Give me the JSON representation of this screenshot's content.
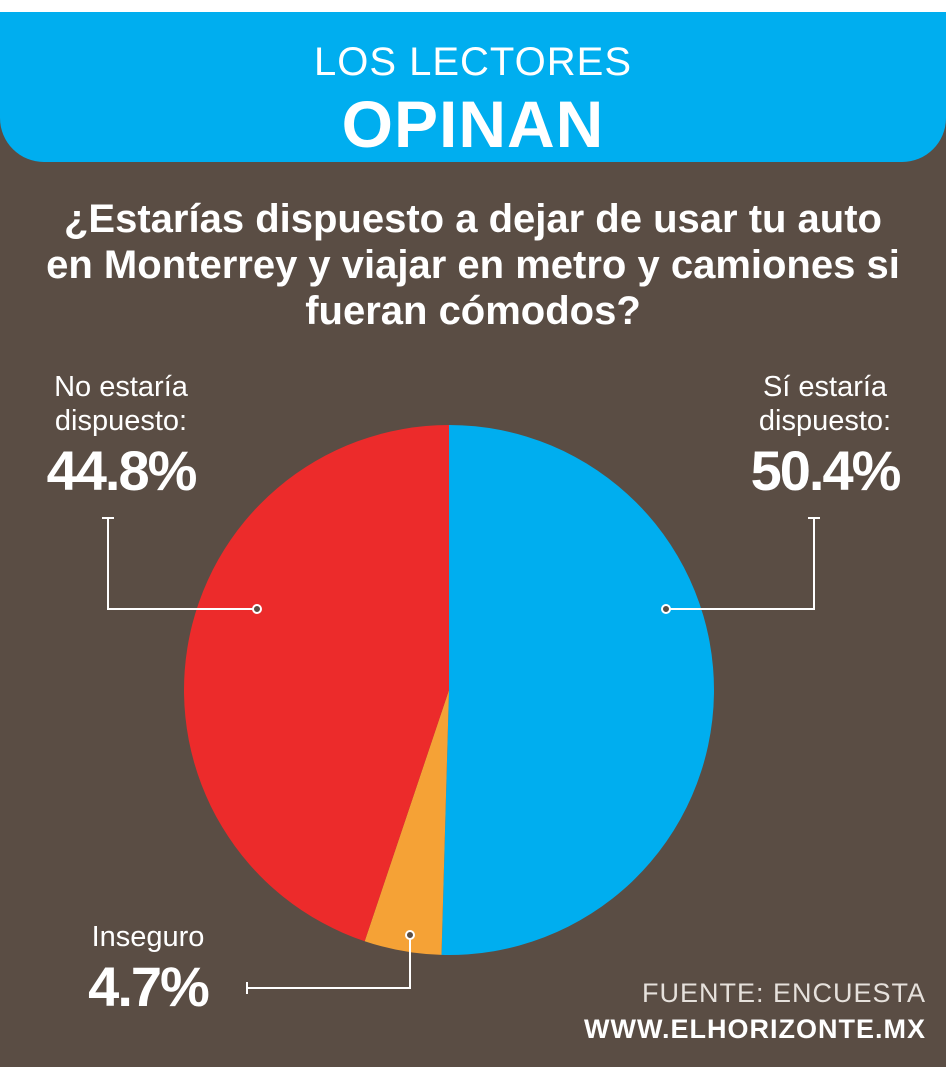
{
  "header": {
    "line1": "LOS LECTORES",
    "line2": "OPINAN"
  },
  "question": "¿Estarías dispuesto a dejar de usar tu auto en Monterrey y viajar en metro y camiones si fueran cómodos?",
  "chart_data": {
    "type": "pie",
    "title": "¿Estarías dispuesto a dejar de usar tu auto en Monterrey y viajar en metro y camiones si fueran cómodos?",
    "slices": [
      {
        "label": "Sí estaría dispuesto:",
        "label_line1": "Sí estaría",
        "label_line2": "dispuesto:",
        "value": 50.4,
        "display": "50.4%",
        "color": "#00aeef"
      },
      {
        "label": "Inseguro",
        "label_line1": "Inseguro",
        "value": 4.7,
        "display": "4.7%",
        "color": "#f5a236"
      },
      {
        "label": "No estaría dispuesto:",
        "label_line1": "No estaría",
        "label_line2": "dispuesto:",
        "value": 44.8,
        "display": "44.8%",
        "color": "#ec2b2b"
      }
    ],
    "start": "12 o'clock",
    "direction": "clockwise"
  },
  "source": {
    "line1": "FUENTE: ENCUESTA",
    "line2": "WWW.ELHORIZONTE.MX"
  }
}
